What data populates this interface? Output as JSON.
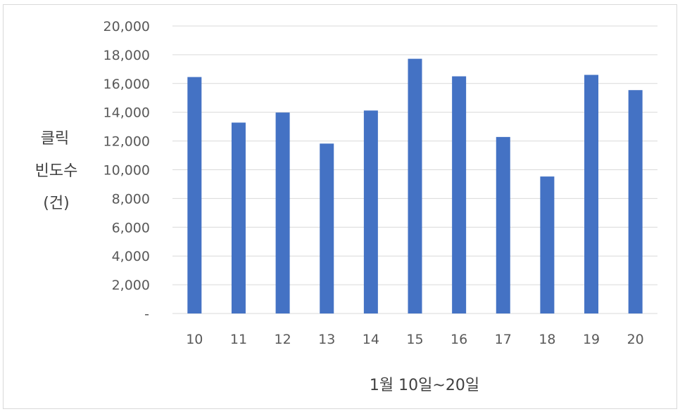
{
  "chart_data": {
    "type": "bar",
    "categories": [
      "10",
      "11",
      "12",
      "13",
      "14",
      "15",
      "16",
      "17",
      "18",
      "19",
      "20"
    ],
    "series": [
      {
        "values": [
          16450,
          13280,
          13980,
          11820,
          14120,
          17720,
          16500,
          12280,
          9530,
          16600,
          15540
        ]
      }
    ],
    "ylim": [
      0,
      20000
    ],
    "yticks": [
      "-",
      "2,000",
      "4,000",
      "6,000",
      "8,000",
      "10,000",
      "12,000",
      "14,000",
      "16,000",
      "18,000",
      "20,000"
    ],
    "ylabel_lines": [
      "클릭",
      "빈도수",
      "(건)"
    ],
    "xlabel": "1월 10일~20일",
    "grid": true,
    "colors": {
      "bar": "#4472C4",
      "grid": "#d9d9d9",
      "text": "#595959"
    }
  }
}
